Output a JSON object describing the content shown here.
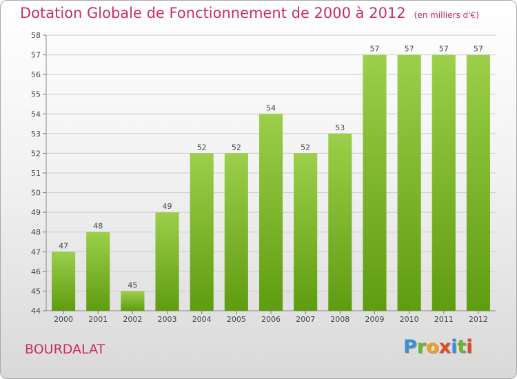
{
  "title": "Dotation Globale de Fonctionnement de 2000 à 2012",
  "unit_note": "(en milliers d'€)",
  "commune": "BOURDALAT",
  "logo": {
    "letters": [
      "P",
      "r",
      "o",
      "x",
      "i",
      "t",
      "i"
    ],
    "colors": [
      "#3a8fd8",
      "#6bb52a",
      "#f0a020",
      "#e04a2a",
      "#3a8fd8",
      "#6bb52a",
      "#e04a2a"
    ]
  },
  "colors": {
    "title": "#c8305a",
    "bar_top": "#9ccf4a",
    "bar_bottom": "#5f9c10",
    "grid": "#cccccc"
  },
  "chart_data": {
    "type": "bar",
    "categories": [
      "2000",
      "2001",
      "2002",
      "2003",
      "2004",
      "2005",
      "2006",
      "2007",
      "2008",
      "2009",
      "2010",
      "2011",
      "2012"
    ],
    "values": [
      47,
      48,
      45,
      49,
      52,
      52,
      54,
      52,
      53,
      57,
      57,
      57,
      57
    ],
    "ylim": [
      44,
      58
    ],
    "yticks": [
      44,
      45,
      46,
      47,
      48,
      49,
      50,
      51,
      52,
      53,
      54,
      55,
      56,
      57,
      58
    ],
    "grid": true,
    "data_labels": true
  }
}
